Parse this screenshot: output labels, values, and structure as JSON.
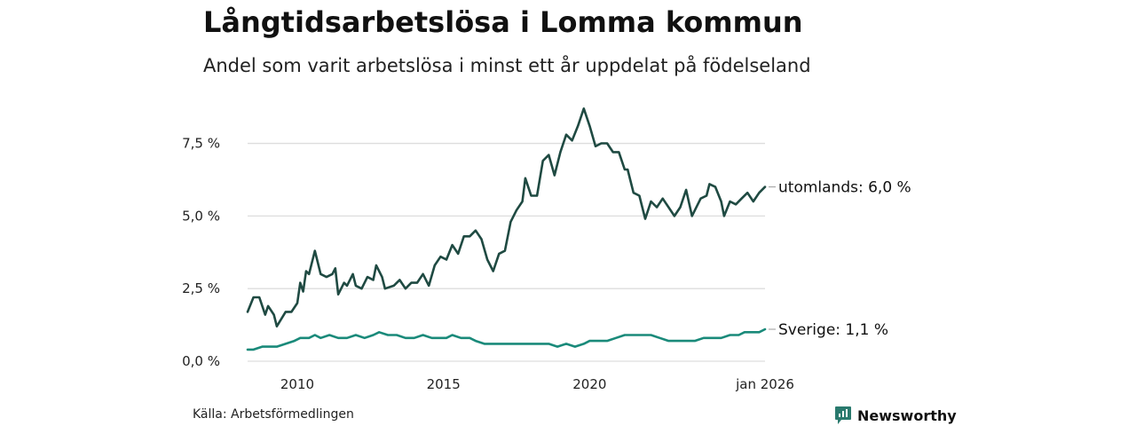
{
  "header": {
    "title": "Långtidsarbetslösa i Lomma kommun",
    "subtitle": "Andel som varit arbetslösa i minst ett år uppdelat på födelseland"
  },
  "footer": {
    "source": "Källa: Arbetsförmedlingen",
    "brand": "Newsworthy"
  },
  "colors": {
    "utomlands": "#1f4a42",
    "sverige": "#1a8a7a",
    "grid": "#dddddd",
    "brand": "#2a7a6e"
  },
  "chart_data": {
    "type": "line",
    "title": "Långtidsarbetslösa i Lomma kommun",
    "subtitle": "Andel som varit arbetslösa i minst ett år uppdelat på födelseland",
    "xlabel": "",
    "ylabel": "",
    "x_range": [
      2008.3,
      2026.0
    ],
    "ylim": [
      0,
      8.8
    ],
    "y_ticks": [
      0,
      2.5,
      5.0,
      7.5
    ],
    "y_tick_labels": [
      "0,0 %",
      "2,5 %",
      "5,0 %",
      "7,5 %"
    ],
    "x_ticks": [
      2010,
      2015,
      2020,
      2026.0
    ],
    "x_tick_labels": [
      "2010",
      "2015",
      "2020",
      "jan 2026"
    ],
    "grid": true,
    "series": [
      {
        "name": "utomlands",
        "end_label": "utomlands: 6,0 %",
        "points": [
          [
            2008.3,
            1.7
          ],
          [
            2008.5,
            2.2
          ],
          [
            2008.7,
            2.2
          ],
          [
            2008.9,
            1.6
          ],
          [
            2009.0,
            1.9
          ],
          [
            2009.2,
            1.6
          ],
          [
            2009.3,
            1.2
          ],
          [
            2009.6,
            1.7
          ],
          [
            2009.8,
            1.7
          ],
          [
            2010.0,
            2.0
          ],
          [
            2010.1,
            2.7
          ],
          [
            2010.2,
            2.4
          ],
          [
            2010.3,
            3.1
          ],
          [
            2010.4,
            3.0
          ],
          [
            2010.6,
            3.8
          ],
          [
            2010.8,
            3.0
          ],
          [
            2011.0,
            2.9
          ],
          [
            2011.2,
            3.0
          ],
          [
            2011.3,
            3.2
          ],
          [
            2011.4,
            2.3
          ],
          [
            2011.6,
            2.7
          ],
          [
            2011.7,
            2.6
          ],
          [
            2011.9,
            3.0
          ],
          [
            2012.0,
            2.6
          ],
          [
            2012.2,
            2.5
          ],
          [
            2012.4,
            2.9
          ],
          [
            2012.6,
            2.8
          ],
          [
            2012.7,
            3.3
          ],
          [
            2012.9,
            2.9
          ],
          [
            2013.0,
            2.5
          ],
          [
            2013.3,
            2.6
          ],
          [
            2013.5,
            2.8
          ],
          [
            2013.7,
            2.5
          ],
          [
            2013.9,
            2.7
          ],
          [
            2014.1,
            2.7
          ],
          [
            2014.3,
            3.0
          ],
          [
            2014.5,
            2.6
          ],
          [
            2014.7,
            3.3
          ],
          [
            2014.9,
            3.6
          ],
          [
            2015.1,
            3.5
          ],
          [
            2015.3,
            4.0
          ],
          [
            2015.5,
            3.7
          ],
          [
            2015.7,
            4.3
          ],
          [
            2015.9,
            4.3
          ],
          [
            2016.1,
            4.5
          ],
          [
            2016.3,
            4.2
          ],
          [
            2016.5,
            3.5
          ],
          [
            2016.7,
            3.1
          ],
          [
            2016.9,
            3.7
          ],
          [
            2017.1,
            3.8
          ],
          [
            2017.3,
            4.8
          ],
          [
            2017.5,
            5.2
          ],
          [
            2017.7,
            5.5
          ],
          [
            2017.8,
            6.3
          ],
          [
            2018.0,
            5.7
          ],
          [
            2018.2,
            5.7
          ],
          [
            2018.4,
            6.9
          ],
          [
            2018.6,
            7.1
          ],
          [
            2018.8,
            6.4
          ],
          [
            2019.0,
            7.2
          ],
          [
            2019.2,
            7.8
          ],
          [
            2019.4,
            7.6
          ],
          [
            2019.6,
            8.1
          ],
          [
            2019.8,
            8.7
          ],
          [
            2020.0,
            8.1
          ],
          [
            2020.2,
            7.4
          ],
          [
            2020.4,
            7.5
          ],
          [
            2020.6,
            7.5
          ],
          [
            2020.8,
            7.2
          ],
          [
            2021.0,
            7.2
          ],
          [
            2021.2,
            6.6
          ],
          [
            2021.3,
            6.6
          ],
          [
            2021.5,
            5.8
          ],
          [
            2021.7,
            5.7
          ],
          [
            2021.9,
            4.9
          ],
          [
            2022.1,
            5.5
          ],
          [
            2022.3,
            5.3
          ],
          [
            2022.5,
            5.6
          ],
          [
            2022.7,
            5.3
          ],
          [
            2022.9,
            5.0
          ],
          [
            2023.1,
            5.3
          ],
          [
            2023.3,
            5.9
          ],
          [
            2023.5,
            5.0
          ],
          [
            2023.8,
            5.6
          ],
          [
            2024.0,
            5.7
          ],
          [
            2024.1,
            6.1
          ],
          [
            2024.3,
            6.0
          ],
          [
            2024.5,
            5.5
          ],
          [
            2024.6,
            5.0
          ],
          [
            2024.8,
            5.5
          ],
          [
            2025.0,
            5.4
          ],
          [
            2025.2,
            5.6
          ],
          [
            2025.4,
            5.8
          ],
          [
            2025.6,
            5.5
          ],
          [
            2025.8,
            5.8
          ],
          [
            2026.0,
            6.0
          ]
        ]
      },
      {
        "name": "Sverige",
        "end_label": "Sverige: 1,1 %",
        "points": [
          [
            2008.3,
            0.4
          ],
          [
            2008.5,
            0.4
          ],
          [
            2008.8,
            0.5
          ],
          [
            2009.0,
            0.5
          ],
          [
            2009.3,
            0.5
          ],
          [
            2009.6,
            0.6
          ],
          [
            2009.9,
            0.7
          ],
          [
            2010.1,
            0.8
          ],
          [
            2010.4,
            0.8
          ],
          [
            2010.6,
            0.9
          ],
          [
            2010.8,
            0.8
          ],
          [
            2011.1,
            0.9
          ],
          [
            2011.4,
            0.8
          ],
          [
            2011.7,
            0.8
          ],
          [
            2012.0,
            0.9
          ],
          [
            2012.3,
            0.8
          ],
          [
            2012.6,
            0.9
          ],
          [
            2012.8,
            1.0
          ],
          [
            2013.1,
            0.9
          ],
          [
            2013.4,
            0.9
          ],
          [
            2013.7,
            0.8
          ],
          [
            2014.0,
            0.8
          ],
          [
            2014.3,
            0.9
          ],
          [
            2014.6,
            0.8
          ],
          [
            2014.9,
            0.8
          ],
          [
            2015.1,
            0.8
          ],
          [
            2015.3,
            0.9
          ],
          [
            2015.6,
            0.8
          ],
          [
            2015.9,
            0.8
          ],
          [
            2016.1,
            0.7
          ],
          [
            2016.4,
            0.6
          ],
          [
            2016.7,
            0.6
          ],
          [
            2017.0,
            0.6
          ],
          [
            2017.4,
            0.6
          ],
          [
            2017.7,
            0.6
          ],
          [
            2018.0,
            0.6
          ],
          [
            2018.3,
            0.6
          ],
          [
            2018.6,
            0.6
          ],
          [
            2018.9,
            0.5
          ],
          [
            2019.2,
            0.6
          ],
          [
            2019.5,
            0.5
          ],
          [
            2019.8,
            0.6
          ],
          [
            2020.0,
            0.7
          ],
          [
            2020.3,
            0.7
          ],
          [
            2020.6,
            0.7
          ],
          [
            2020.9,
            0.8
          ],
          [
            2021.2,
            0.9
          ],
          [
            2021.5,
            0.9
          ],
          [
            2021.8,
            0.9
          ],
          [
            2022.1,
            0.9
          ],
          [
            2022.4,
            0.8
          ],
          [
            2022.7,
            0.7
          ],
          [
            2023.0,
            0.7
          ],
          [
            2023.3,
            0.7
          ],
          [
            2023.6,
            0.7
          ],
          [
            2023.9,
            0.8
          ],
          [
            2024.2,
            0.8
          ],
          [
            2024.5,
            0.8
          ],
          [
            2024.8,
            0.9
          ],
          [
            2025.1,
            0.9
          ],
          [
            2025.3,
            1.0
          ],
          [
            2025.6,
            1.0
          ],
          [
            2025.8,
            1.0
          ],
          [
            2026.0,
            1.1
          ]
        ]
      }
    ]
  }
}
